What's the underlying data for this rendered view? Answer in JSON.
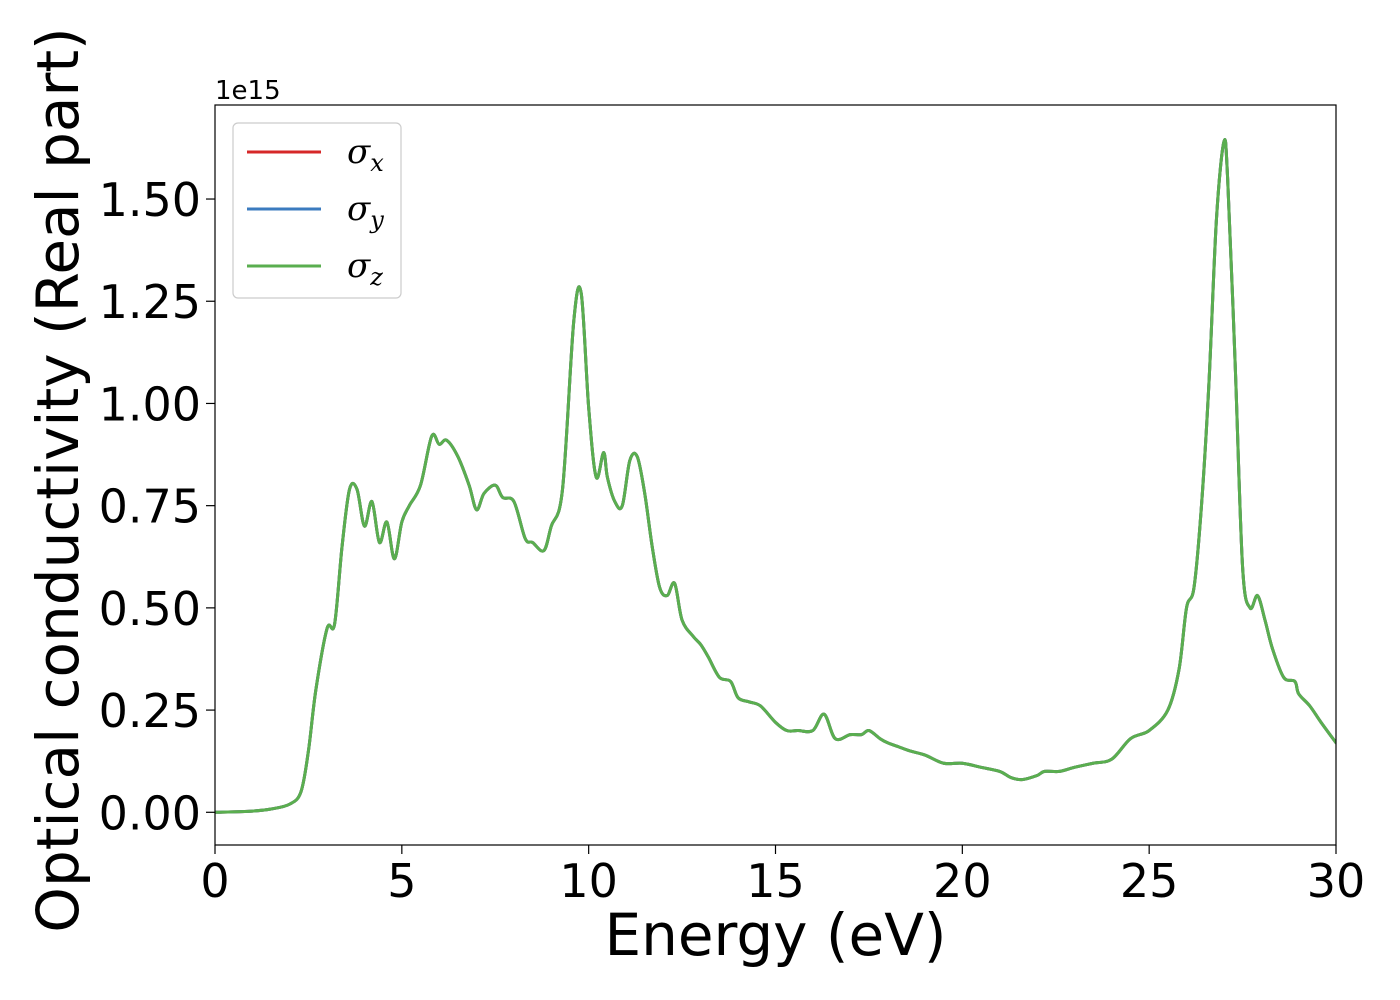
{
  "chart_data": {
    "type": "line",
    "xlabel": "Energy (eV)",
    "ylabel": "Optical conductivity (Real part)",
    "y_offset_text": "1e15",
    "xlim": [
      0,
      30
    ],
    "ylim": [
      -0.08,
      1.73
    ],
    "xticks": [
      0,
      5,
      10,
      15,
      20,
      25,
      30
    ],
    "xtick_labels": [
      "0",
      "5",
      "10",
      "15",
      "20",
      "25",
      "30"
    ],
    "yticks": [
      0.0,
      0.25,
      0.5,
      0.75,
      1.0,
      1.25,
      1.5
    ],
    "ytick_labels": [
      "0.00",
      "0.25",
      "0.50",
      "0.75",
      "1.00",
      "1.25",
      "1.50"
    ],
    "grid": false,
    "legend_position": "top-left",
    "x": [
      0,
      1,
      1.5,
      2,
      2.3,
      2.5,
      2.7,
      3.0,
      3.2,
      3.4,
      3.6,
      3.8,
      4.0,
      4.2,
      4.4,
      4.6,
      4.8,
      5.0,
      5.2,
      5.5,
      5.8,
      6.0,
      6.2,
      6.5,
      6.8,
      7.0,
      7.2,
      7.5,
      7.7,
      8.0,
      8.3,
      8.5,
      8.8,
      9.0,
      9.3,
      9.6,
      9.8,
      10.0,
      10.2,
      10.4,
      10.5,
      10.7,
      10.9,
      11.1,
      11.3,
      11.5,
      11.7,
      11.9,
      12.1,
      12.3,
      12.5,
      12.8,
      13.0,
      13.2,
      13.5,
      13.8,
      14.0,
      14.3,
      14.6,
      15.0,
      15.3,
      15.6,
      16.0,
      16.3,
      16.6,
      17.0,
      17.3,
      17.5,
      17.8,
      18.0,
      18.3,
      18.6,
      19.0,
      19.5,
      20.0,
      20.5,
      21.0,
      21.3,
      21.6,
      22.0,
      22.2,
      22.6,
      23.0,
      23.5,
      24.0,
      24.5,
      25.0,
      25.5,
      25.8,
      26.0,
      26.2,
      26.4,
      26.6,
      26.8,
      27.0,
      27.1,
      27.3,
      27.5,
      27.7,
      27.9,
      28.1,
      28.3,
      28.6,
      28.9,
      29.0,
      29.3,
      29.6,
      30.0
    ],
    "series": [
      {
        "name": "σ_x",
        "label_base": "σ",
        "label_sub": "x",
        "color": "#d62728",
        "values": [
          0.0,
          0.003,
          0.008,
          0.02,
          0.05,
          0.15,
          0.3,
          0.45,
          0.46,
          0.65,
          0.79,
          0.79,
          0.7,
          0.76,
          0.66,
          0.71,
          0.62,
          0.71,
          0.75,
          0.8,
          0.92,
          0.9,
          0.91,
          0.87,
          0.8,
          0.74,
          0.78,
          0.8,
          0.77,
          0.76,
          0.67,
          0.66,
          0.64,
          0.7,
          0.79,
          1.2,
          1.27,
          0.99,
          0.82,
          0.88,
          0.82,
          0.76,
          0.75,
          0.86,
          0.87,
          0.78,
          0.65,
          0.55,
          0.53,
          0.56,
          0.47,
          0.43,
          0.41,
          0.38,
          0.33,
          0.32,
          0.28,
          0.27,
          0.26,
          0.22,
          0.2,
          0.2,
          0.2,
          0.24,
          0.18,
          0.19,
          0.19,
          0.2,
          0.18,
          0.17,
          0.16,
          0.15,
          0.14,
          0.12,
          0.12,
          0.11,
          0.1,
          0.085,
          0.08,
          0.09,
          0.1,
          0.1,
          0.11,
          0.12,
          0.13,
          0.18,
          0.2,
          0.25,
          0.35,
          0.5,
          0.55,
          0.75,
          1.05,
          1.45,
          1.64,
          1.55,
          1.1,
          0.6,
          0.5,
          0.53,
          0.47,
          0.4,
          0.33,
          0.32,
          0.29,
          0.26,
          0.22,
          0.17
        ]
      },
      {
        "name": "σ_y",
        "label_base": "σ",
        "label_sub": "y",
        "color": "#3b7bbf",
        "values": [
          0.0,
          0.003,
          0.008,
          0.02,
          0.05,
          0.15,
          0.3,
          0.45,
          0.46,
          0.65,
          0.79,
          0.79,
          0.7,
          0.76,
          0.66,
          0.71,
          0.62,
          0.71,
          0.75,
          0.8,
          0.92,
          0.9,
          0.91,
          0.87,
          0.8,
          0.74,
          0.78,
          0.8,
          0.77,
          0.76,
          0.67,
          0.66,
          0.64,
          0.7,
          0.79,
          1.2,
          1.27,
          0.99,
          0.82,
          0.88,
          0.82,
          0.76,
          0.75,
          0.86,
          0.87,
          0.78,
          0.65,
          0.55,
          0.53,
          0.56,
          0.47,
          0.43,
          0.41,
          0.38,
          0.33,
          0.32,
          0.28,
          0.27,
          0.26,
          0.22,
          0.2,
          0.2,
          0.2,
          0.24,
          0.18,
          0.19,
          0.19,
          0.2,
          0.18,
          0.17,
          0.16,
          0.15,
          0.14,
          0.12,
          0.12,
          0.11,
          0.1,
          0.085,
          0.08,
          0.09,
          0.1,
          0.1,
          0.11,
          0.12,
          0.13,
          0.18,
          0.2,
          0.25,
          0.35,
          0.5,
          0.55,
          0.75,
          1.05,
          1.45,
          1.64,
          1.55,
          1.1,
          0.6,
          0.5,
          0.53,
          0.47,
          0.4,
          0.33,
          0.32,
          0.29,
          0.26,
          0.22,
          0.17
        ]
      },
      {
        "name": "σ_z",
        "label_base": "σ",
        "label_sub": "z",
        "color": "#5aae4f",
        "values": [
          0.0,
          0.003,
          0.008,
          0.02,
          0.05,
          0.15,
          0.3,
          0.45,
          0.46,
          0.65,
          0.79,
          0.79,
          0.7,
          0.76,
          0.66,
          0.71,
          0.62,
          0.71,
          0.75,
          0.8,
          0.92,
          0.9,
          0.91,
          0.87,
          0.8,
          0.74,
          0.78,
          0.8,
          0.77,
          0.76,
          0.67,
          0.66,
          0.64,
          0.7,
          0.79,
          1.2,
          1.27,
          0.99,
          0.82,
          0.88,
          0.82,
          0.76,
          0.75,
          0.86,
          0.87,
          0.78,
          0.65,
          0.55,
          0.53,
          0.56,
          0.47,
          0.43,
          0.41,
          0.38,
          0.33,
          0.32,
          0.28,
          0.27,
          0.26,
          0.22,
          0.2,
          0.2,
          0.2,
          0.24,
          0.18,
          0.19,
          0.19,
          0.2,
          0.18,
          0.17,
          0.16,
          0.15,
          0.14,
          0.12,
          0.12,
          0.11,
          0.1,
          0.085,
          0.08,
          0.09,
          0.1,
          0.1,
          0.11,
          0.12,
          0.13,
          0.18,
          0.2,
          0.25,
          0.35,
          0.5,
          0.55,
          0.75,
          1.05,
          1.45,
          1.64,
          1.55,
          1.1,
          0.6,
          0.5,
          0.53,
          0.47,
          0.4,
          0.33,
          0.32,
          0.29,
          0.26,
          0.22,
          0.17
        ]
      }
    ]
  }
}
